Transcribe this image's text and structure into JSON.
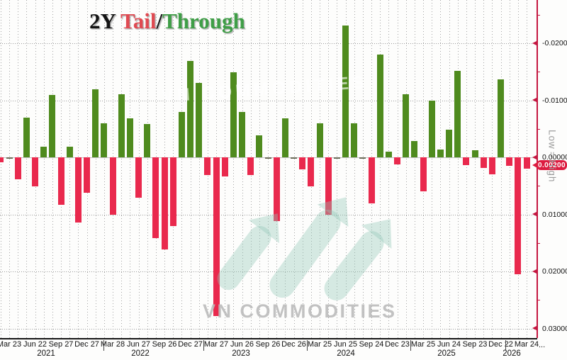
{
  "title": {
    "prefix": "2Y ",
    "tail": "Tail",
    "slash": "/",
    "through": "Through"
  },
  "watermark": {
    "main_text": "VN COMMODITIES",
    "faint_text": "VN COMMODITIES"
  },
  "chart_data": {
    "type": "bar",
    "title": "2Y Tail/Through",
    "x": [
      "2021-02",
      "2021-03",
      "2021-04",
      "2021-05",
      "2021-06",
      "2021-07",
      "2021-08",
      "2021-09",
      "2021-10",
      "2021-11",
      "2021-12",
      "2022-01",
      "2022-02",
      "2022-03",
      "2022-04",
      "2022-05",
      "2022-06",
      "2022-07",
      "2022-08",
      "2022-09",
      "2022-10",
      "2022-11",
      "2022-12",
      "2023-01",
      "2023-02",
      "2023-03",
      "2023-04",
      "2023-05",
      "2023-06",
      "2023-07",
      "2023-08",
      "2023-09",
      "2023-10",
      "2023-11",
      "2023-12",
      "2024-01",
      "2024-02",
      "2024-03",
      "2024-04",
      "2024-05",
      "2024-06",
      "2024-07",
      "2024-08",
      "2024-09",
      "2024-10",
      "2024-11",
      "2024-12",
      "2025-01",
      "2025-02",
      "2025-03",
      "2025-04",
      "2025-05",
      "2025-06",
      "2025-07",
      "2025-08",
      "2025-09",
      "2025-10",
      "2025-11",
      "2025-12",
      "2026-01",
      "2026-02",
      "2026-03"
    ],
    "values": [
      0.0009,
      0.0002,
      0.0039,
      -0.007,
      0.0051,
      -0.0019,
      -0.0109,
      0.0083,
      -0.0019,
      0.0114,
      0.0062,
      -0.0119,
      -0.006,
      0.0101,
      -0.011,
      -0.0069,
      0.0071,
      -0.0059,
      0.0141,
      0.0162,
      0.0121,
      -0.008,
      -0.0169,
      -0.0131,
      0.0031,
      0.0278,
      0.0033,
      -0.0149,
      -0.0079,
      0.0031,
      -0.0039,
      0.0002,
      0.0112,
      -0.0069,
      0.0002,
      0.0021,
      0.0051,
      -0.006,
      0.01,
      0.0002,
      -0.0231,
      -0.006,
      0.0002,
      0.0081,
      -0.018,
      -0.001,
      0.0012,
      -0.0111,
      -0.0029,
      0.006,
      -0.01,
      -0.0014,
      -0.0049,
      -0.0152,
      0.0014,
      -0.0012,
      0.0019,
      0.003,
      -0.0137,
      0.0015,
      0.0205,
      0.002
    ],
    "positive_meaning": "Tail (red, plotted downward)",
    "negative_meaning": "Stop-through (green, plotted upward)",
    "y_axis_inverted": true,
    "ylim": [
      -0.0275,
      0.0315
    ],
    "y_ticks": [
      {
        "value": -0.02,
        "label": "-0.02000"
      },
      {
        "value": -0.01,
        "label": "-0.01000"
      },
      {
        "value": 0.0,
        "label": "0.00000"
      },
      {
        "value": 0.01,
        "label": "0.01000"
      },
      {
        "value": 0.02,
        "label": "0.02000"
      },
      {
        "value": 0.03,
        "label": "0.03000"
      }
    ],
    "y_minor_tick_values": [
      -0.025,
      -0.015,
      -0.005,
      0.005,
      0.015,
      0.025
    ],
    "x_tick_labels": [
      "Mar 23",
      "Jun 22",
      "Sep 27",
      "Dec 27",
      "Mar 28",
      "Jun 27",
      "Sep 26",
      "Dec 27",
      "Mar 27",
      "Jun 26",
      "Sep 26",
      "Dec 26",
      "Mar 25",
      "Jun 25",
      "Sep 24",
      "Dec 23",
      "Mar 25",
      "Jun 24",
      "Sep 23",
      "Dec 22",
      "Mar 24"
    ],
    "x_ellipsis": "...",
    "years": [
      "2021",
      "2022",
      "2023",
      "2024",
      "2025",
      "2026"
    ],
    "last_value_badge": "0.00200",
    "right_axis_annotation": {
      "low": "Low",
      "separator": "=",
      "high": "High"
    },
    "grid": true,
    "legend_position": "none",
    "colors": {
      "tail": "#e9294d",
      "through": "#4f8b1e",
      "near_zero": "#6b6b58",
      "axis": "#c41740"
    }
  }
}
